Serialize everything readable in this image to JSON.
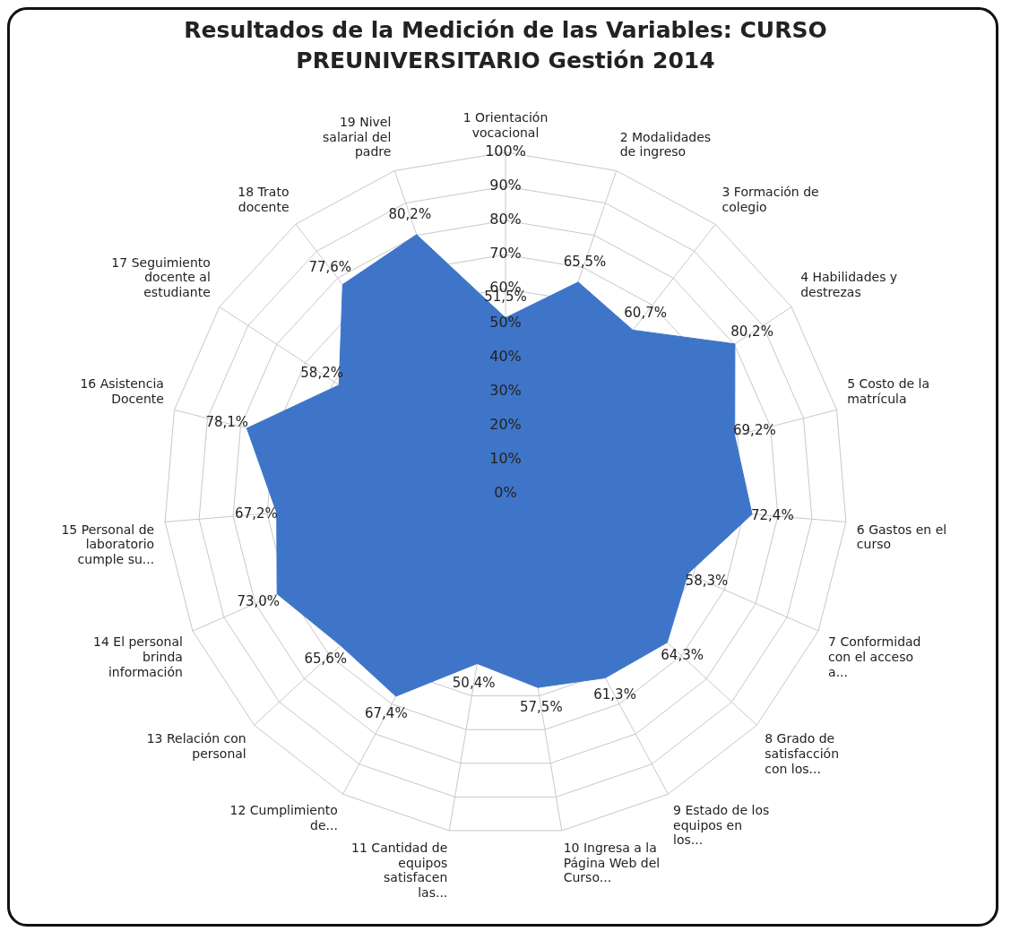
{
  "chart_data": {
    "type": "radar",
    "title": "Resultados de la Medición de las Variables: CURSO PREUNIVERSITARIO Gestión 2014",
    "categories": [
      "1 Orientación vocacional",
      "2 Modalidades de ingreso",
      "3 Formación de colegio",
      "4 Habilidades y destrezas",
      "5 Costo de la matrícula",
      "6 Gastos en el curso",
      "7 Conformidad con el acceso a...",
      "8 Grado de satisfacción con los...",
      "9 Estado de los equipos en los...",
      "10 Ingresa a la Página Web del Curso...",
      "11 Cantidad de equipos satisfacen las...",
      "12 Cumplimiento de...",
      "13 Relación con personal",
      "14 El personal brinda información",
      "15 Personal de laboratorio cumple su...",
      "16 Asistencia Docente",
      "17 Seguimiento docente al estudiante",
      "18 Trato docente",
      "19 Nivel salarial del padre"
    ],
    "series": [
      {
        "color": "#3f75c8",
        "values": [
          51.5,
          65.5,
          60.7,
          80.2,
          69.2,
          72.4,
          58.3,
          64.3,
          61.3,
          57.5,
          50.4,
          67.4,
          65.6,
          73.0,
          67.2,
          78.1,
          58.2,
          77.6,
          80.2
        ],
        "value_labels": [
          "51,5%",
          "65,5%",
          "60,7%",
          "80,2%",
          "69,2%",
          "72,4%",
          "58,3%",
          "64,3%",
          "61,3%",
          "57,5%",
          "50,4%",
          "67,4%",
          "65,6%",
          "73,0%",
          "67,2%",
          "78,1%",
          "58,2%",
          "77,6%",
          "80,2%"
        ]
      }
    ],
    "ylim": [
      0,
      100
    ],
    "yticks": [
      {
        "value": 0,
        "label": "0%"
      },
      {
        "value": 10,
        "label": "10%"
      },
      {
        "value": 20,
        "label": "20%"
      },
      {
        "value": 30,
        "label": "30%"
      },
      {
        "value": 40,
        "label": "40%"
      },
      {
        "value": 50,
        "label": "50%"
      },
      {
        "value": 60,
        "label": "60%"
      },
      {
        "value": 70,
        "label": "70%"
      },
      {
        "value": 80,
        "label": "80%"
      },
      {
        "value": 90,
        "label": "90%"
      },
      {
        "value": 100,
        "label": "100%"
      }
    ],
    "grid": true
  }
}
